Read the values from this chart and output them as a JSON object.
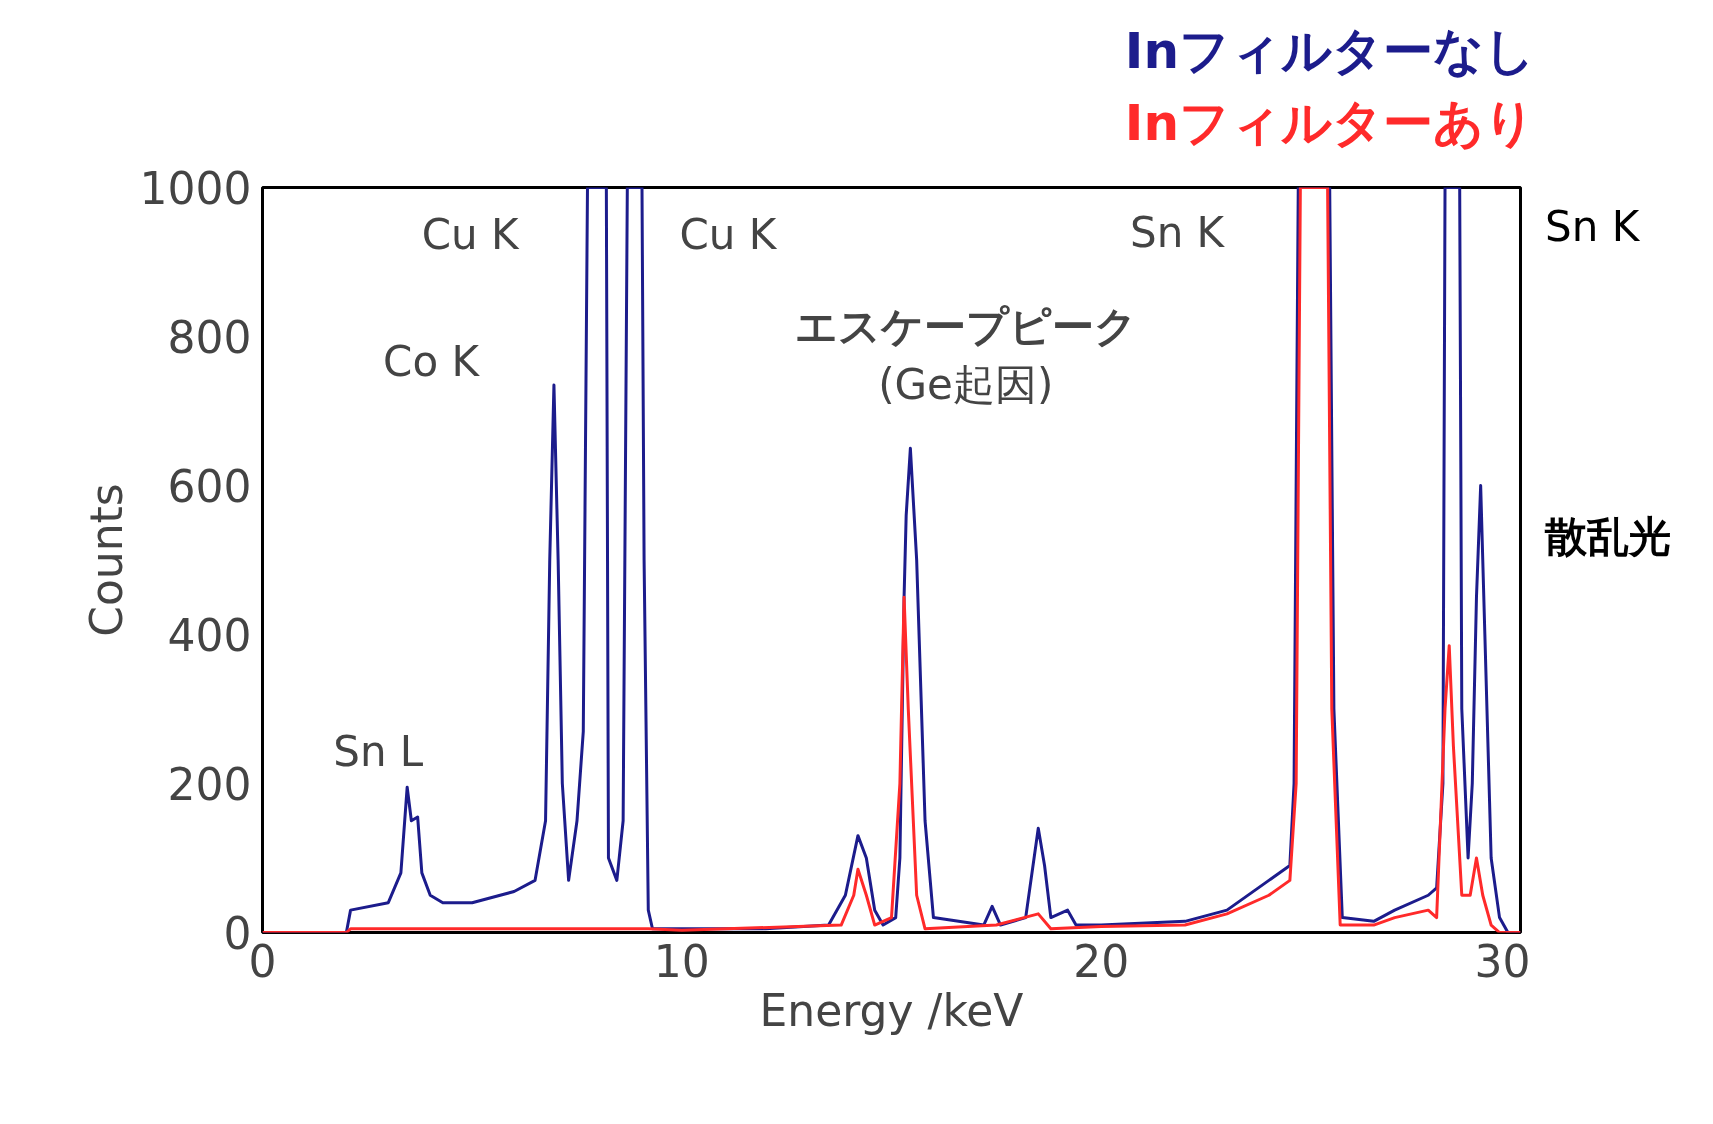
{
  "chart_data": {
    "type": "line",
    "xlabel": "Energy /keV",
    "ylabel": "Counts",
    "xlim": [
      0,
      30
    ],
    "ylim": [
      0,
      1000
    ],
    "xticks": [
      0,
      10,
      20,
      30
    ],
    "yticks": [
      0,
      200,
      400,
      600,
      800,
      1000
    ],
    "grid": false,
    "marker": "none",
    "line_style": "solid",
    "series": [
      {
        "name": "Inフィルターなし",
        "color": "#1c1c8c",
        "x": [
          0,
          2.0,
          2.1,
          3.0,
          3.3,
          3.45,
          3.55,
          3.7,
          3.8,
          4.0,
          4.3,
          5.0,
          6.0,
          6.5,
          6.75,
          6.85,
          6.95,
          7.05,
          7.15,
          7.3,
          7.5,
          7.65,
          7.75,
          7.8,
          8.2,
          8.25,
          8.45,
          8.6,
          8.7,
          8.75,
          9.05,
          9.1,
          9.2,
          9.3,
          10,
          12,
          13.5,
          13.9,
          14.2,
          14.4,
          14.6,
          14.8,
          15.1,
          15.2,
          15.3,
          15.35,
          15.45,
          15.6,
          15.8,
          16.0,
          17.2,
          17.4,
          17.6,
          18.2,
          18.5,
          18.65,
          18.8,
          19.2,
          19.4,
          20,
          22,
          23,
          24,
          24.5,
          24.6,
          24.7,
          25.45,
          25.55,
          25.75,
          26.5,
          27,
          27.8,
          28.0,
          28.15,
          28.2,
          28.55,
          28.6,
          28.75,
          28.85,
          28.95,
          29.05,
          29.15,
          29.3,
          29.5,
          29.7,
          30
        ],
        "values": [
          0,
          0,
          30,
          40,
          80,
          195,
          150,
          155,
          80,
          50,
          40,
          40,
          55,
          70,
          150,
          500,
          735,
          500,
          200,
          70,
          150,
          270,
          1000,
          1000,
          1000,
          100,
          70,
          150,
          1000,
          1000,
          1000,
          500,
          30,
          5,
          5,
          5,
          10,
          50,
          130,
          100,
          30,
          10,
          20,
          100,
          450,
          560,
          650,
          500,
          150,
          20,
          10,
          35,
          10,
          20,
          140,
          90,
          20,
          30,
          10,
          10,
          15,
          30,
          70,
          90,
          200,
          1000,
          1000,
          300,
          20,
          15,
          30,
          50,
          60,
          200,
          1000,
          1000,
          300,
          100,
          200,
          450,
          600,
          400,
          100,
          20,
          0,
          0
        ]
      },
      {
        "name": "Inフィルターあり",
        "color": "#ff2a2a",
        "x": [
          0,
          2.0,
          2.1,
          9.2,
          10,
          13.8,
          14.1,
          14.2,
          14.4,
          14.6,
          15.0,
          15.2,
          15.3,
          15.4,
          15.6,
          15.8,
          17.5,
          18.5,
          18.8,
          20,
          22,
          23,
          24,
          24.5,
          24.65,
          24.75,
          25.4,
          25.5,
          25.7,
          26.5,
          27,
          27.8,
          28.0,
          28.2,
          28.3,
          28.4,
          28.6,
          28.8,
          28.95,
          29.1,
          29.3,
          29.5,
          30
        ],
        "values": [
          0,
          0,
          5,
          5,
          3,
          10,
          50,
          85,
          50,
          10,
          20,
          200,
          450,
          300,
          50,
          5,
          10,
          25,
          5,
          8,
          10,
          25,
          50,
          70,
          200,
          1000,
          1000,
          300,
          10,
          10,
          20,
          30,
          20,
          300,
          385,
          250,
          50,
          50,
          100,
          50,
          10,
          0,
          0
        ]
      }
    ],
    "annotations": [
      "Sn L",
      "Co K",
      "Cu K",
      "Cu K",
      "Sn K",
      "エスケープピーク",
      "(Ge起因)",
      "Sn K",
      "散乱光"
    ]
  }
}
